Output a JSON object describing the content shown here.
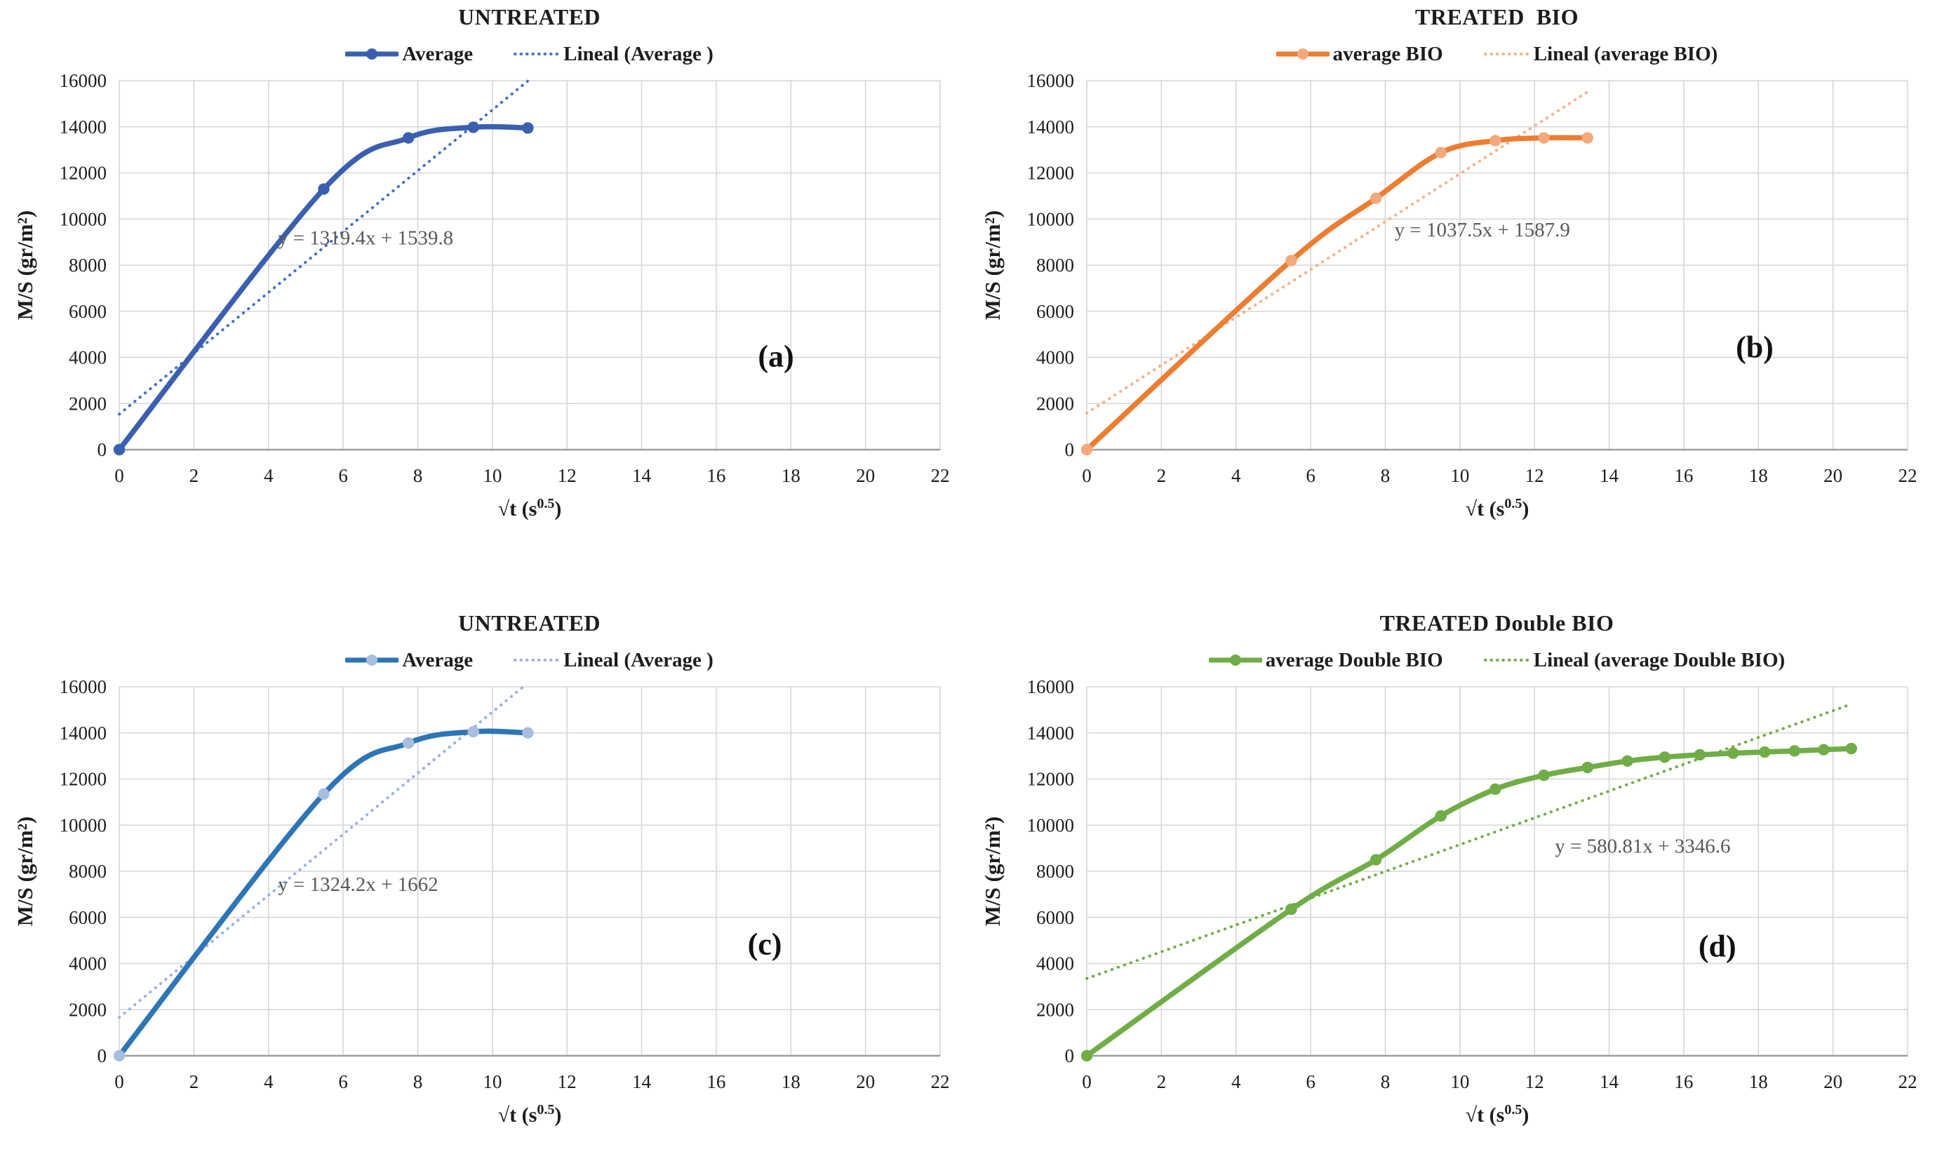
{
  "figure": {
    "ylabel": "M/S (gr/m²)",
    "xlabel_base": "√t (s",
    "xlabel_sup": "0.5",
    "xlabel_close": ")",
    "xlim": [
      0,
      22
    ],
    "ylim": [
      0,
      16000
    ],
    "x_ticks": [
      0,
      2,
      4,
      6,
      8,
      10,
      12,
      14,
      16,
      18,
      20,
      22
    ],
    "y_ticks": [
      0,
      2000,
      4000,
      6000,
      8000,
      10000,
      12000,
      14000,
      16000
    ],
    "grid": true,
    "legend_position": "top",
    "colors": {
      "grid": "#d6d6d6",
      "axis": "#9e9e9e",
      "equation": "#595959",
      "text": "#1d1d1d",
      "letter": "#111111"
    }
  },
  "chart_data": [
    {
      "type": "line",
      "title": "UNTREATED",
      "panel_letter": "(a)",
      "series_label": "Average",
      "trend_label": "Lineal (Average )",
      "equation": "y = 1319.4x + 1539.8",
      "colors": {
        "line": "#3a5fae",
        "marker": "#3a5fae",
        "trend": "#4472c4"
      },
      "x": [
        0,
        5.48,
        7.75,
        9.49,
        10.95
      ],
      "y": [
        0,
        11300,
        13520,
        13980,
        13950
      ],
      "trend": {
        "slope": 1319.4,
        "intercept": 1539.8,
        "x_end": 11.3
      },
      "equation_pos": {
        "x": 6.6,
        "y": 8900
      },
      "letter_pos": {
        "x": 17.6,
        "y": 3600
      }
    },
    {
      "type": "line",
      "title": "TREATED  BIO",
      "panel_letter": "(b)",
      "series_label": "average BIO",
      "trend_label": "Lineal (average BIO)",
      "equation": "y = 1037.5x + 1587.9",
      "colors": {
        "line": "#ed7d31",
        "marker": "#f2a97c",
        "trend": "#f5b28a"
      },
      "x": [
        0,
        5.48,
        7.75,
        9.49,
        10.95,
        12.25,
        13.42
      ],
      "y": [
        0,
        8200,
        10900,
        12880,
        13400,
        13520,
        13520
      ],
      "trend": {
        "slope": 1037.5,
        "intercept": 1587.9,
        "x_end": 13.42
      },
      "equation_pos": {
        "x": 10.6,
        "y": 9250
      },
      "letter_pos": {
        "x": 17.9,
        "y": 4000
      }
    },
    {
      "type": "line",
      "title": "UNTREATED",
      "panel_letter": "(c)",
      "series_label": "Average",
      "trend_label": "Lineal (Average )",
      "equation": "y = 1324.2x + 1662",
      "colors": {
        "line": "#2e75b6",
        "marker": "#a8bede",
        "trend": "#9db1e0"
      },
      "x": [
        0,
        5.48,
        7.75,
        9.49,
        10.95
      ],
      "y": [
        0,
        11350,
        13560,
        14050,
        14000
      ],
      "trend": {
        "slope": 1324.2,
        "intercept": 1662,
        "x_end": 11.3
      },
      "equation_pos": {
        "x": 6.4,
        "y": 7150
      },
      "letter_pos": {
        "x": 17.3,
        "y": 4400
      }
    },
    {
      "type": "line",
      "title": "TREATED Double BIO",
      "panel_letter": "(d)",
      "series_label": "average Double BIO",
      "trend_label": "Lineal (average Double BIO)",
      "equation": "y = 580.81x + 3346.6",
      "colors": {
        "line": "#70ad47",
        "marker": "#70ad47",
        "trend": "#70ad47"
      },
      "x": [
        0,
        5.48,
        7.75,
        9.49,
        10.95,
        12.25,
        13.42,
        14.49,
        15.49,
        16.43,
        17.32,
        18.17,
        18.97,
        19.75,
        20.49
      ],
      "y": [
        0,
        6350,
        8500,
        10400,
        11560,
        12160,
        12500,
        12780,
        12950,
        13050,
        13120,
        13170,
        13220,
        13270,
        13320
      ],
      "trend": {
        "slope": 580.81,
        "intercept": 3346.6,
        "x_end": 20.49
      },
      "equation_pos": {
        "x": 14.9,
        "y": 8800
      },
      "letter_pos": {
        "x": 16.9,
        "y": 4300
      }
    }
  ]
}
